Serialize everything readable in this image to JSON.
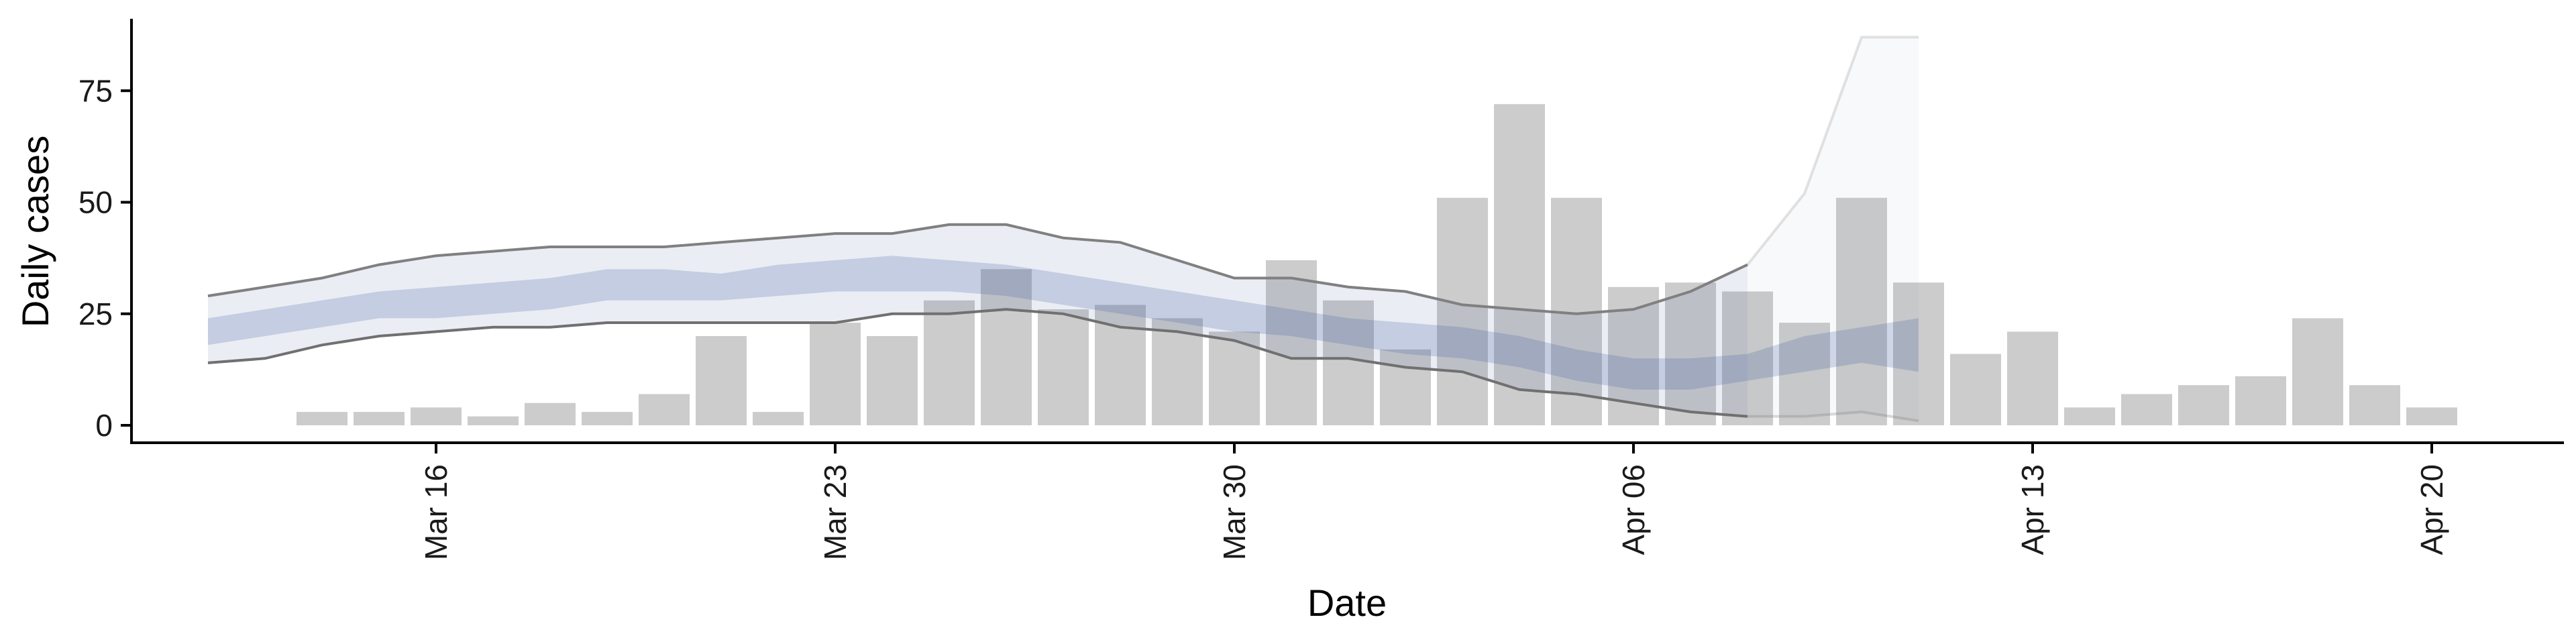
{
  "chart_data": {
    "type": "bar",
    "title": "",
    "xlabel": "Date",
    "ylabel": "Daily cases",
    "x_axis": {
      "type": "date",
      "range": [
        "2020-03-11",
        "2020-04-22"
      ],
      "ticks": [
        {
          "date": "2020-03-16",
          "label": "Mar 16"
        },
        {
          "date": "2020-03-23",
          "label": "Mar 23"
        },
        {
          "date": "2020-03-30",
          "label": "Mar 30"
        },
        {
          "date": "2020-04-06",
          "label": "Apr 06"
        },
        {
          "date": "2020-04-13",
          "label": "Apr 13"
        },
        {
          "date": "2020-04-20",
          "label": "Apr 20"
        }
      ]
    },
    "y_axis": {
      "range": [
        -4,
        93
      ],
      "ticks": [
        0,
        25,
        50,
        75
      ]
    },
    "grid": false,
    "bars": {
      "name": "",
      "color": "#cccccc",
      "points": [
        {
          "date": "2020-03-14",
          "value": 3
        },
        {
          "date": "2020-03-15",
          "value": 3
        },
        {
          "date": "2020-03-16",
          "value": 4
        },
        {
          "date": "2020-03-17",
          "value": 2
        },
        {
          "date": "2020-03-18",
          "value": 5
        },
        {
          "date": "2020-03-19",
          "value": 3
        },
        {
          "date": "2020-03-20",
          "value": 7
        },
        {
          "date": "2020-03-21",
          "value": 20
        },
        {
          "date": "2020-03-22",
          "value": 3
        },
        {
          "date": "2020-03-23",
          "value": 23
        },
        {
          "date": "2020-03-24",
          "value": 20
        },
        {
          "date": "2020-03-25",
          "value": 28
        },
        {
          "date": "2020-03-26",
          "value": 35
        },
        {
          "date": "2020-03-27",
          "value": 26
        },
        {
          "date": "2020-03-28",
          "value": 27
        },
        {
          "date": "2020-03-29",
          "value": 24
        },
        {
          "date": "2020-03-30",
          "value": 21
        },
        {
          "date": "2020-03-31",
          "value": 37
        },
        {
          "date": "2020-04-01",
          "value": 28
        },
        {
          "date": "2020-04-02",
          "value": 17
        },
        {
          "date": "2020-04-03",
          "value": 51
        },
        {
          "date": "2020-04-04",
          "value": 72
        },
        {
          "date": "2020-04-05",
          "value": 51
        },
        {
          "date": "2020-04-06",
          "value": 31
        },
        {
          "date": "2020-04-07",
          "value": 32
        },
        {
          "date": "2020-04-08",
          "value": 30
        },
        {
          "date": "2020-04-09",
          "value": 23
        },
        {
          "date": "2020-04-10",
          "value": 51
        },
        {
          "date": "2020-04-11",
          "value": 32
        },
        {
          "date": "2020-04-12",
          "value": 16
        },
        {
          "date": "2020-04-13",
          "value": 21
        },
        {
          "date": "2020-04-14",
          "value": 4
        },
        {
          "date": "2020-04-15",
          "value": 7
        },
        {
          "date": "2020-04-16",
          "value": 9
        },
        {
          "date": "2020-04-17",
          "value": 11
        },
        {
          "date": "2020-04-18",
          "value": 24
        },
        {
          "date": "2020-04-19",
          "value": 9
        },
        {
          "date": "2020-04-20",
          "value": 4
        }
      ]
    },
    "estimate_bands": {
      "color": "#3f5a9e",
      "dates": [
        "2020-03-12",
        "2020-03-13",
        "2020-03-14",
        "2020-03-15",
        "2020-03-16",
        "2020-03-17",
        "2020-03-18",
        "2020-03-19",
        "2020-03-20",
        "2020-03-21",
        "2020-03-22",
        "2020-03-23",
        "2020-03-24",
        "2020-03-25",
        "2020-03-26",
        "2020-03-27",
        "2020-03-28",
        "2020-03-29",
        "2020-03-30",
        "2020-03-31",
        "2020-04-01",
        "2020-04-02",
        "2020-04-03",
        "2020-04-04",
        "2020-04-05",
        "2020-04-06",
        "2020-04-07",
        "2020-04-08",
        "2020-04-09",
        "2020-04-10",
        "2020-04-11"
      ],
      "outer_lower": [
        14,
        15,
        18,
        20,
        21,
        22,
        22,
        23,
        23,
        23,
        23,
        23,
        25,
        25,
        26,
        25,
        22,
        21,
        19,
        15,
        15,
        13,
        12,
        8,
        7,
        5,
        3,
        2,
        2,
        3,
        1
      ],
      "outer_upper": [
        29,
        31,
        33,
        36,
        38,
        39,
        40,
        40,
        40,
        41,
        42,
        43,
        43,
        45,
        45,
        42,
        41,
        37,
        33,
        33,
        31,
        30,
        27,
        26,
        25,
        26,
        30,
        36,
        52,
        87,
        87
      ],
      "inner_lower": [
        18,
        20,
        22,
        24,
        24,
        25,
        26,
        28,
        28,
        28,
        29,
        30,
        30,
        30,
        29,
        27,
        25,
        23,
        21,
        20,
        18,
        16,
        15,
        13,
        10,
        8,
        8,
        10,
        12,
        14,
        12
      ],
      "inner_upper": [
        24,
        26,
        28,
        30,
        31,
        32,
        33,
        35,
        35,
        34,
        36,
        37,
        38,
        37,
        36,
        34,
        32,
        30,
        28,
        26,
        24,
        23,
        22,
        20,
        17,
        15,
        15,
        16,
        20,
        22,
        24
      ],
      "outer_opacity": 0.11,
      "inner_opacity": 0.22,
      "outer_tail_opacity": 0.04
    }
  }
}
